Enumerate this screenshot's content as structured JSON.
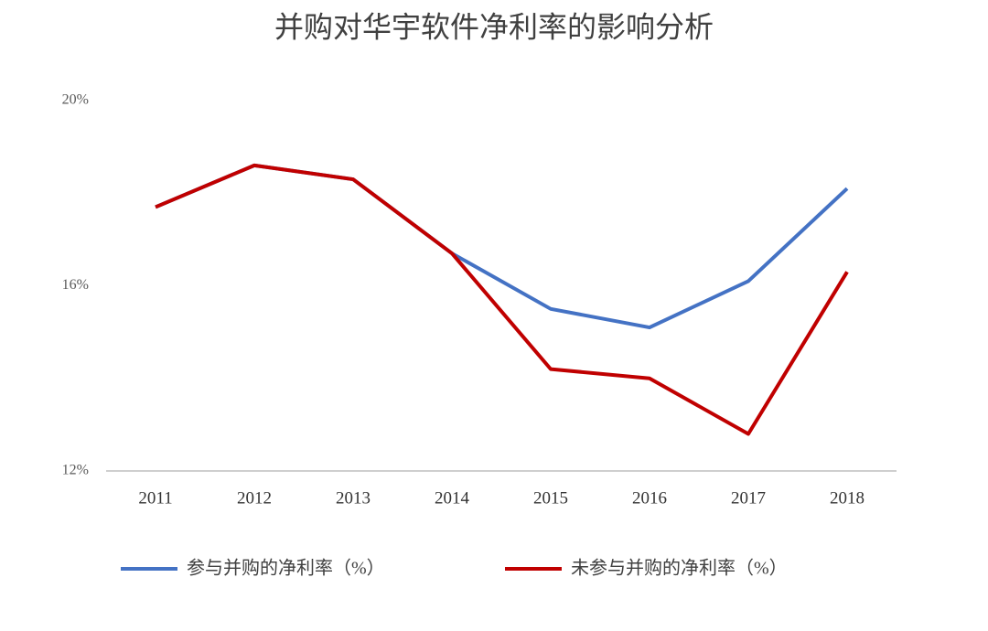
{
  "chart_data": {
    "type": "line",
    "title": "并购对华宇软件净利率的影响分析",
    "categories": [
      "2011",
      "2012",
      "2013",
      "2014",
      "2015",
      "2016",
      "2017",
      "2018"
    ],
    "series": [
      {
        "name": "参与并购的净利率（%）",
        "color": "#4472c4",
        "values": [
          17.7,
          18.6,
          18.3,
          16.7,
          15.5,
          15.1,
          16.1,
          18.1
        ]
      },
      {
        "name": "未参与并购的净利率（%）",
        "color": "#c00000",
        "values": [
          17.7,
          18.6,
          18.3,
          16.7,
          14.2,
          14.0,
          12.8,
          16.3
        ]
      }
    ],
    "ylim": [
      12,
      20
    ],
    "yticks": [
      {
        "value": 12,
        "label": "12%"
      },
      {
        "value": 16,
        "label": "16%"
      },
      {
        "value": 20,
        "label": "20%"
      }
    ],
    "grid": false
  }
}
